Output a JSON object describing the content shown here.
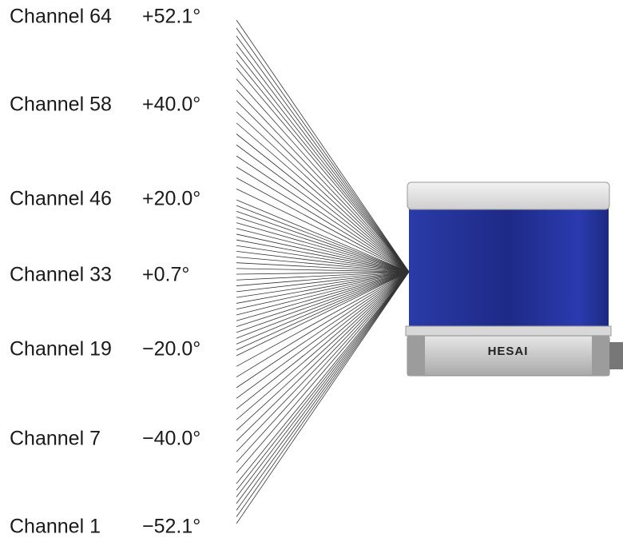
{
  "channels": [
    {
      "name": "Channel 64",
      "angle": "+52.1°"
    },
    {
      "name": "Channel 58",
      "angle": "+40.0°"
    },
    {
      "name": "Channel 46",
      "angle": "+20.0°"
    },
    {
      "name": "Channel 33",
      "angle": "+0.7°"
    },
    {
      "name": "Channel 19",
      "angle": "−20.0°"
    },
    {
      "name": "Channel 7",
      "angle": "−40.0°"
    },
    {
      "name": "Channel 1",
      "angle": "−52.1°"
    }
  ],
  "device": {
    "brand": "HESAI"
  }
}
